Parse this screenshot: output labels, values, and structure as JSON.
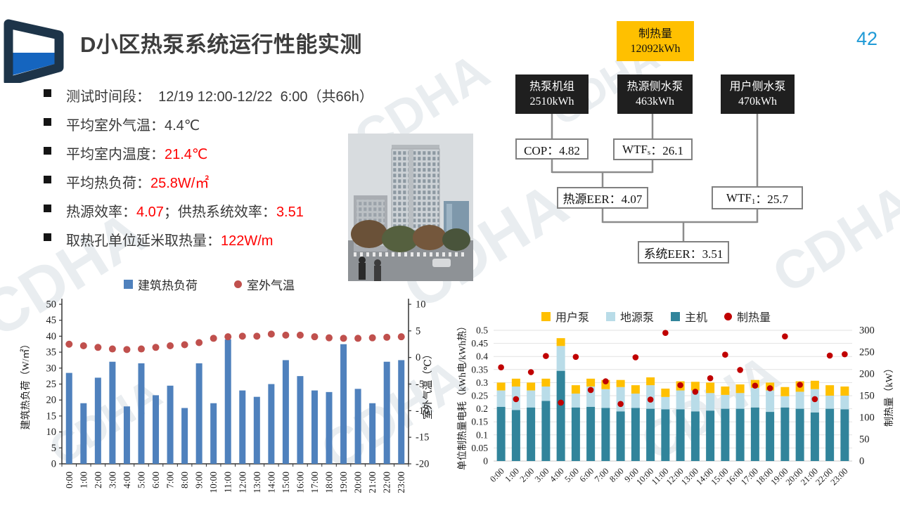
{
  "page": {
    "title": "D小区热泵系统运行性能实测",
    "page_number": "42"
  },
  "colors": {
    "accent_red": "#ff0000",
    "page_blue": "#1f9ad6",
    "title_color": "#3d3d3d",
    "diagram_yellow": "#ffc000",
    "diagram_black": "#1f1f1f",
    "diagram_border": "#808080",
    "connector": "#8c8c8c"
  },
  "bullets": [
    {
      "runs": [
        {
          "t": "测试时间段：  12/19 12:00-12/22  6:00（共66h）",
          "red": false
        }
      ]
    },
    {
      "runs": [
        {
          "t": "平均室外气温：4.4℃",
          "red": false
        }
      ]
    },
    {
      "runs": [
        {
          "t": "平均室内温度：",
          "red": false
        },
        {
          "t": "21.4℃",
          "red": true
        }
      ]
    },
    {
      "runs": [
        {
          "t": "平均热负荷：",
          "red": false
        },
        {
          "t": "25.8W/㎡",
          "red": true
        }
      ]
    },
    {
      "runs": [
        {
          "t": "热源效率：",
          "red": false
        },
        {
          "t": "4.07",
          "red": true
        },
        {
          "t": "；供热系统效率：",
          "red": false
        },
        {
          "t": "3.51",
          "red": true
        }
      ]
    },
    {
      "runs": [
        {
          "t": "取热孔单位延米取热量：",
          "red": false
        },
        {
          "t": "122W/m",
          "red": true
        }
      ]
    }
  ],
  "diagram": {
    "top_box": {
      "line1": "制热量",
      "line2": "12092kWh"
    },
    "unit_boxes": [
      {
        "line1": "热泵机组",
        "line2": "2510kWh"
      },
      {
        "line1": "热源侧水泵",
        "line2": "463kWh"
      },
      {
        "line1": "用户侧水泵",
        "line2": "470kWh"
      }
    ],
    "metric_boxes": [
      {
        "pre": "COP：4.82",
        "sub": "",
        "post": ""
      },
      {
        "pre": "WTF",
        "sub": "s",
        "post": "：26.1"
      },
      {
        "pre": "热源EER：4.07",
        "sub": "",
        "post": ""
      },
      {
        "pre": "WTF",
        "sub": "1",
        "post": "：25.7"
      },
      {
        "pre": "系统EER：3.51",
        "sub": "",
        "post": ""
      }
    ]
  },
  "watermark_text": "CDHA",
  "chart_data": [
    {
      "type": "bar",
      "title": "",
      "categories": [
        "0:00",
        "1:00",
        "2:00",
        "3:00",
        "4:00",
        "5:00",
        "6:00",
        "7:00",
        "8:00",
        "9:00",
        "10:00",
        "11:00",
        "12:00",
        "13:00",
        "14:00",
        "15:00",
        "16:00",
        "17:00",
        "18:00",
        "19:00",
        "20:00",
        "21:00",
        "22:00",
        "23:00"
      ],
      "series": [
        {
          "name": "建筑热负荷",
          "type": "bar",
          "axis": "left",
          "color": "#4f81bd",
          "values": [
            28.5,
            19,
            27,
            32,
            18,
            31.5,
            21.5,
            24.5,
            17.5,
            31.5,
            19,
            39,
            23,
            21,
            25,
            32.5,
            27.5,
            23,
            22.5,
            37.5,
            23.5,
            19,
            32,
            32.5
          ]
        },
        {
          "name": "室外气温",
          "type": "scatter",
          "axis": "right",
          "color": "#c0504d",
          "values": [
            2.5,
            2.2,
            1.9,
            1.6,
            1.5,
            1.6,
            1.9,
            2.2,
            2.4,
            2.8,
            3.6,
            3.9,
            4.0,
            4.0,
            4.4,
            4.2,
            4.2,
            3.9,
            3.7,
            3.6,
            3.6,
            3.7,
            3.8,
            3.9
          ]
        }
      ],
      "y_left": {
        "label": "建筑热负荷（W/㎡）",
        "min": 0,
        "max": 50,
        "step": 5
      },
      "y_right": {
        "label": "室外气温（℃）",
        "min": -20,
        "max": 10,
        "step": 5
      },
      "legend": [
        {
          "label": "建筑热负荷",
          "shape": "square",
          "color": "#4f81bd"
        },
        {
          "label": "室外气温",
          "shape": "circle",
          "color": "#c0504d"
        }
      ],
      "legend_position": "top",
      "grid": false
    },
    {
      "type": "stacked-bar",
      "title": "",
      "categories": [
        "0:00",
        "1:00",
        "2:00",
        "3:00",
        "4:00",
        "5:00",
        "6:00",
        "7:00",
        "8:00",
        "9:00",
        "10:00",
        "11:00",
        "12:00",
        "13:00",
        "14:00",
        "15:00",
        "16:00",
        "17:00",
        "18:00",
        "19:00",
        "20:00",
        "21:00",
        "22:00",
        "23:00"
      ],
      "series": [
        {
          "name": "主机",
          "type": "bar",
          "axis": "left",
          "color": "#31849b",
          "values": [
            0.207,
            0.195,
            0.205,
            0.23,
            0.345,
            0.205,
            0.207,
            0.203,
            0.19,
            0.203,
            0.2,
            0.198,
            0.198,
            0.19,
            0.193,
            0.2,
            0.2,
            0.205,
            0.188,
            0.205,
            0.2,
            0.186,
            0.2,
            0.198
          ]
        },
        {
          "name": "地源泵",
          "type": "bar",
          "axis": "left",
          "color": "#b9dce8",
          "values": [
            0.063,
            0.09,
            0.065,
            0.055,
            0.095,
            0.053,
            0.078,
            0.072,
            0.093,
            0.055,
            0.09,
            0.047,
            0.072,
            0.08,
            0.067,
            0.053,
            0.06,
            0.075,
            0.082,
            0.043,
            0.065,
            0.089,
            0.05,
            0.052
          ]
        },
        {
          "name": "用户泵",
          "type": "bar",
          "axis": "left",
          "color": "#ffc000",
          "values": [
            0.03,
            0.03,
            0.03,
            0.03,
            0.03,
            0.032,
            0.03,
            0.035,
            0.027,
            0.032,
            0.03,
            0.032,
            0.035,
            0.033,
            0.04,
            0.032,
            0.033,
            0.03,
            0.03,
            0.035,
            0.04,
            0.032,
            0.04,
            0.035
          ]
        },
        {
          "name": "制热量",
          "type": "scatter",
          "axis": "right",
          "color": "#c00000",
          "values": [
            215,
            142,
            204,
            241,
            134,
            239,
            163,
            183,
            131,
            238,
            141,
            294,
            174,
            159,
            190,
            244,
            209,
            173,
            167,
            286,
            175,
            142,
            242,
            245
          ]
        }
      ],
      "y_left": {
        "label": "单位制热量电耗（kWh电/kWh热）",
        "min": 0,
        "max": 0.5,
        "step": 0.05
      },
      "y_right": {
        "label": "制热量（kW）",
        "min": 0,
        "max": 300,
        "step": 50
      },
      "legend": [
        {
          "label": "用户泵",
          "shape": "square",
          "color": "#ffc000"
        },
        {
          "label": "地源泵",
          "shape": "square",
          "color": "#b9dce8"
        },
        {
          "label": "主机",
          "shape": "square",
          "color": "#31849b"
        },
        {
          "label": "制热量",
          "shape": "circle",
          "color": "#c00000"
        }
      ],
      "legend_position": "top",
      "grid": true
    }
  ]
}
